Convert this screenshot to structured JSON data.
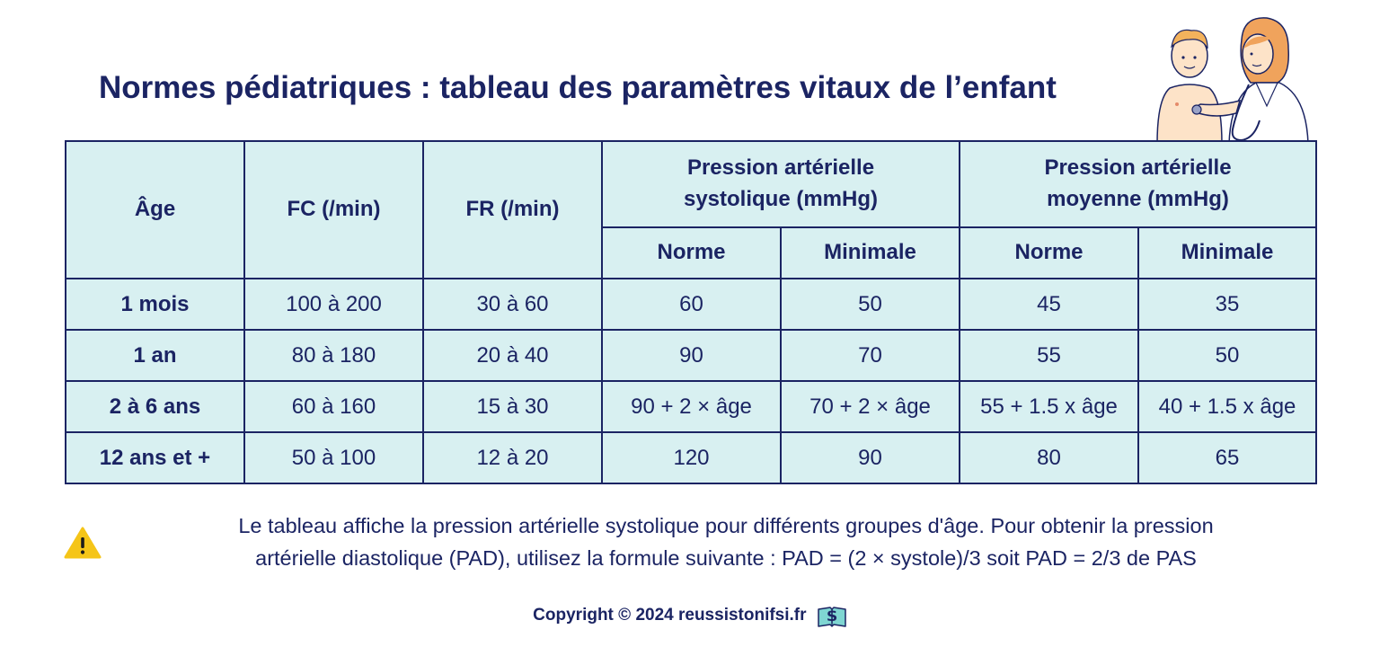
{
  "title": "Normes pédiatriques : tableau des paramètres vitaux de l’enfant",
  "illustration": {
    "description_icon": "doctor-child-stethoscope-illustration"
  },
  "table": {
    "headers": {
      "age": "Âge",
      "fc": "FC (/min)",
      "fr": "FR (/min)",
      "pas": "Pression artérielle systolique (mmHg)",
      "pam": "Pression artérielle moyenne (mmHg)",
      "pas_norme": "Norme",
      "pas_min": "Minimale",
      "pam_norme": "Norme",
      "pam_min": "Minimale"
    },
    "rows": [
      {
        "age": "1 mois",
        "fc": "100 à 200",
        "fr": "30 à 60",
        "pas_norme": "60",
        "pas_min": "50",
        "pam_norme": "45",
        "pam_min": "35"
      },
      {
        "age": "1 an",
        "fc": "80 à 180",
        "fr": "20 à 40",
        "pas_norme": "90",
        "pas_min": "70",
        "pam_norme": "55",
        "pam_min": "50"
      },
      {
        "age": "2 à 6 ans",
        "fc": "60 à 160",
        "fr": "15 à 30",
        "pas_norme": "90 + 2 × âge",
        "pas_min": "70 + 2 × âge",
        "pam_norme": "55 + 1.5 x âge",
        "pam_min": "40 + 1.5 x âge"
      },
      {
        "age": "12 ans et +",
        "fc": "50 à 100",
        "fr": "12 à 20",
        "pas_norme": "120",
        "pas_min": "90",
        "pam_norme": "80",
        "pam_min": "65"
      }
    ]
  },
  "note": {
    "icon": "warning-icon",
    "line1": "Le tableau affiche la pression artérielle systolique pour différents groupes d'âge. Pour obtenir la pression",
    "line2": "artérielle diastolique (PAD), utilisez la formule suivante : PAD = (2 × systole)/3 soit PAD = 2/3 de PAS"
  },
  "copyright": {
    "text": "Copyright © 2024 reussistonifsi.fr",
    "logo_icon": "book-dollar-logo-icon"
  },
  "colors": {
    "navy": "#1b2463",
    "table_bg": "#d8f0f1",
    "warning": "#f5c518"
  }
}
